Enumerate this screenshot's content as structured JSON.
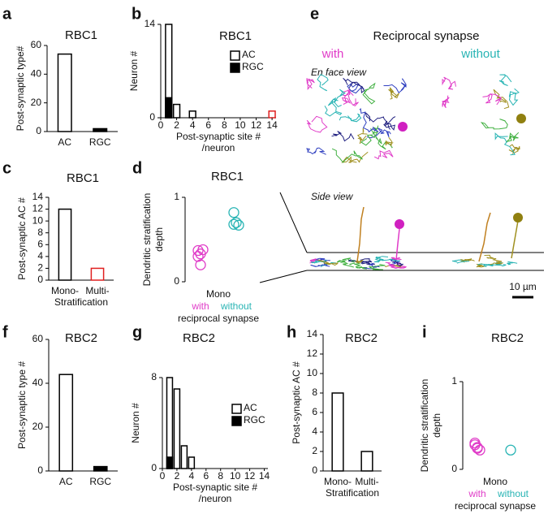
{
  "chart_data": [
    {
      "type": "bar",
      "panel": "a",
      "title": "RBC1",
      "ylabel": "Post-synaptic type#",
      "categories": [
        "AC",
        "RGC"
      ],
      "values": [
        54,
        2
      ],
      "colors": [
        "#ffffff",
        "#000000"
      ],
      "edgecolors": [
        "#000000",
        "#000000"
      ],
      "ylim": [
        0,
        60
      ],
      "yticks": [
        0,
        20,
        40,
        60
      ]
    },
    {
      "type": "histogram",
      "panel": "b",
      "title": "RBC1",
      "ylabel": "Neuron #",
      "xlabel": [
        "Post-synaptic site #",
        "/neuron"
      ],
      "bins": [
        0.5,
        1.5,
        2.5,
        3.5,
        4.5,
        5.5,
        6.5,
        7.5,
        8.5,
        9.5,
        10.5,
        11.5,
        12.5,
        13.5,
        14.5
      ],
      "series": [
        {
          "name": "AC",
          "color": "#ffffff",
          "values": [
            14,
            2,
            0,
            1,
            0,
            0,
            0,
            0,
            0,
            0,
            0,
            0,
            0,
            1
          ],
          "edgecolors": [
            "#000000",
            "#000000",
            "#000000",
            "#000000",
            "#000000",
            "#000000",
            "#000000",
            "#000000",
            "#000000",
            "#000000",
            "#000000",
            "#000000",
            "#000000",
            "#e02020"
          ]
        },
        {
          "name": "RGC",
          "color": "#000000",
          "values": [
            3,
            0,
            0,
            0,
            0,
            0,
            0,
            0,
            0,
            0,
            0,
            0,
            0,
            0
          ]
        }
      ],
      "xlim": [
        0,
        14.5
      ],
      "xticks": [
        0,
        2,
        4,
        6,
        8,
        10,
        12,
        14
      ],
      "ylim": [
        0,
        14
      ],
      "yticks": [
        0,
        14
      ],
      "legend": "upper right"
    },
    {
      "type": "bar",
      "panel": "c",
      "title": "RBC1",
      "ylabel": "Post-synaptic AC #",
      "categories": [
        "Mono-",
        "Multi-"
      ],
      "xlabel": "Stratification",
      "values": [
        12,
        2
      ],
      "colors": [
        "#ffffff",
        "#ffffff"
      ],
      "edgecolors": [
        "#000000",
        "#e02020"
      ],
      "ylim": [
        0,
        14
      ],
      "yticks": [
        0,
        2,
        4,
        6,
        8,
        10,
        12,
        14
      ]
    },
    {
      "type": "strip",
      "panel": "d",
      "title": "RBC1",
      "ylabel": [
        "Dendritic stratification",
        "depth"
      ],
      "category": "Mono",
      "xlabel": "reciprocal synapse",
      "series": [
        {
          "name": "with",
          "color": "#e03cc8",
          "values": [
            0.37,
            0.33,
            0.38,
            0.3,
            0.2
          ]
        },
        {
          "name": "without",
          "color": "#28b4b4",
          "values": [
            0.82,
            0.7,
            0.67,
            0.68
          ]
        }
      ],
      "ylim": [
        0,
        1
      ],
      "yticks": [
        0,
        1
      ]
    },
    {
      "type": "bar",
      "panel": "f",
      "title": "RBC2",
      "ylabel": "Post-synaptic type #",
      "categories": [
        "AC",
        "RGC"
      ],
      "values": [
        44,
        2
      ],
      "colors": [
        "#ffffff",
        "#000000"
      ],
      "edgecolors": [
        "#000000",
        "#000000"
      ],
      "ylim": [
        0,
        60
      ],
      "yticks": [
        0,
        20,
        40,
        60
      ]
    },
    {
      "type": "histogram",
      "panel": "g",
      "title": "RBC2",
      "ylabel": "Neuron #",
      "xlabel": [
        "Post-synaptic site #",
        "/neuron"
      ],
      "bins": [
        0.5,
        1.5,
        2.5,
        3.5,
        4.5,
        5.5,
        6.5,
        7.5,
        8.5,
        9.5,
        10.5,
        11.5,
        12.5,
        13.5,
        14.5
      ],
      "series": [
        {
          "name": "AC",
          "color": "#ffffff",
          "values": [
            8,
            7,
            2,
            1,
            0,
            0,
            0,
            0,
            0,
            0,
            0,
            0,
            0,
            0
          ]
        },
        {
          "name": "RGC",
          "color": "#000000",
          "values": [
            1,
            0,
            0,
            0,
            0,
            0,
            0,
            0,
            0,
            0,
            0,
            0,
            0,
            0
          ]
        }
      ],
      "xlim": [
        0,
        14.5
      ],
      "xticks": [
        0,
        2,
        4,
        6,
        8,
        10,
        12,
        14
      ],
      "ylim": [
        0,
        8
      ],
      "yticks": [
        0,
        8
      ],
      "legend": "upper right"
    },
    {
      "type": "bar",
      "panel": "h",
      "title": "RBC2",
      "ylabel": "Post-synaptic AC #",
      "categories": [
        "Mono-",
        "Multi-"
      ],
      "xlabel": "Stratification",
      "values": [
        8,
        2
      ],
      "colors": [
        "#ffffff",
        "#ffffff"
      ],
      "edgecolors": [
        "#000000",
        "#000000"
      ],
      "ylim": [
        0,
        14
      ],
      "yticks": [
        0,
        2,
        4,
        6,
        8,
        10,
        12,
        14
      ]
    },
    {
      "type": "strip",
      "panel": "i",
      "title": "RBC2",
      "ylabel": [
        "Dendritic stratification",
        "depth"
      ],
      "category": "Mono",
      "xlabel": "reciprocal synapse",
      "series": [
        {
          "name": "with",
          "color": "#e03cc8",
          "values": [
            0.28,
            0.25,
            0.22,
            0.3,
            0.24
          ]
        },
        {
          "name": "without",
          "color": "#28b4b4",
          "values": [
            0.22
          ]
        }
      ],
      "ylim": [
        0,
        1
      ],
      "yticks": [
        0,
        1
      ]
    }
  ],
  "panel_e": {
    "letter": "e",
    "title": "Reciprocal synapse",
    "with": "with",
    "without": "without",
    "en_face": "En face view",
    "side": "Side view",
    "scale": "10 µm"
  }
}
